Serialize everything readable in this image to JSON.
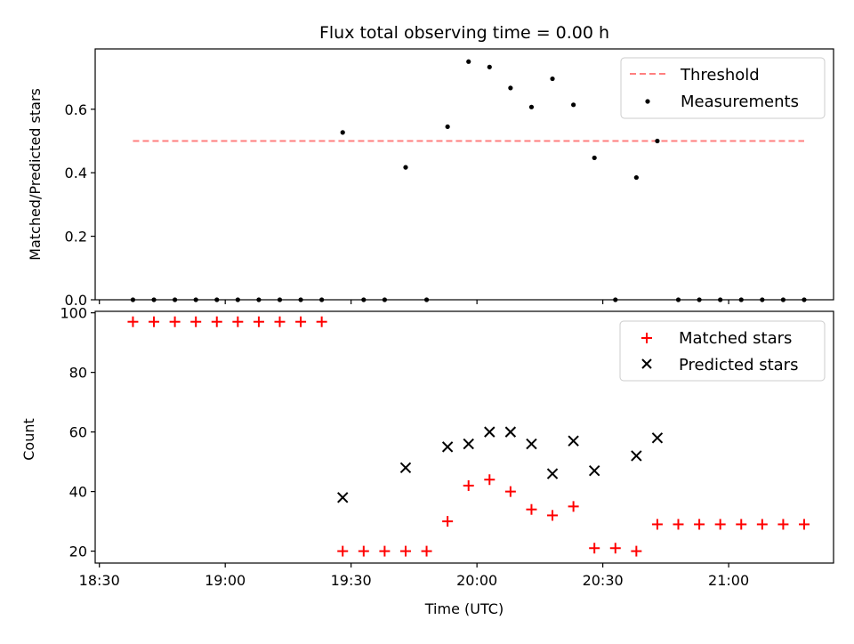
{
  "chart_data": [
    {
      "type": "scatter",
      "title": "Flux total observing time = 0.00 h",
      "xlabel": "",
      "ylabel": "Matched/Predicted stars",
      "ylim": [
        0,
        0.79
      ],
      "yticks": [
        0.0,
        0.2,
        0.4,
        0.6
      ],
      "ytick_labels": [
        "0.0",
        "0.2",
        "0.4",
        "0.6"
      ],
      "legend_position": "top-right",
      "grid": false,
      "threshold": {
        "name": "Threshold",
        "value": 0.5,
        "color": "#ff7f7f",
        "x_start": "18:38",
        "x_end": "21:18"
      },
      "series": [
        {
          "name": "Measurements",
          "color": "#000000",
          "x": [
            "18:38",
            "18:43",
            "18:48",
            "18:53",
            "18:58",
            "19:03",
            "19:08",
            "19:13",
            "19:18",
            "19:23",
            "19:28",
            "19:33",
            "19:38",
            "19:43",
            "19:48",
            "19:53",
            "19:58",
            "20:03",
            "20:08",
            "20:13",
            "20:18",
            "20:23",
            "20:28",
            "20:33",
            "20:38",
            "20:43",
            "20:48",
            "20:53",
            "20:58",
            "21:03",
            "21:08",
            "21:13",
            "21:18"
          ],
          "y": [
            0,
            0,
            0,
            0,
            0,
            0,
            0,
            0,
            0,
            0,
            0.527,
            0,
            0,
            0.417,
            0,
            0.545,
            0.75,
            0.733,
            0.667,
            0.607,
            0.696,
            0.614,
            0.447,
            0,
            0.385,
            0.5,
            0,
            0,
            0,
            0,
            0,
            0,
            0
          ]
        }
      ]
    },
    {
      "type": "scatter",
      "title": "",
      "xlabel": "Time (UTC)",
      "ylabel": "Count",
      "ylim": [
        16,
        100.5
      ],
      "yticks": [
        20,
        40,
        60,
        80,
        100
      ],
      "ytick_labels": [
        "20",
        "40",
        "60",
        "80",
        "100"
      ],
      "xlim": [
        "18:29",
        "21:25"
      ],
      "xticks": [
        "18:30",
        "19:00",
        "19:30",
        "20:00",
        "20:30",
        "21:00"
      ],
      "xtick_labels": [
        "18:30",
        "19:00",
        "19:30",
        "20:00",
        "20:30",
        "21:00"
      ],
      "legend_position": "top-right",
      "grid": false,
      "series": [
        {
          "name": "Matched stars",
          "color": "#ff0000",
          "marker": "plus",
          "x": [
            "18:38",
            "18:43",
            "18:48",
            "18:53",
            "18:58",
            "19:03",
            "19:08",
            "19:13",
            "19:18",
            "19:23",
            "19:28",
            "19:33",
            "19:38",
            "19:43",
            "19:48",
            "19:53",
            "19:58",
            "20:03",
            "20:08",
            "20:13",
            "20:18",
            "20:23",
            "20:28",
            "20:33",
            "20:38",
            "20:43",
            "20:48",
            "20:53",
            "20:58",
            "21:03",
            "21:08",
            "21:13",
            "21:18"
          ],
          "y": [
            97,
            97,
            97,
            97,
            97,
            97,
            97,
            97,
            97,
            97,
            20,
            20,
            20,
            20,
            20,
            30,
            42,
            44,
            40,
            34,
            32,
            35,
            21,
            21,
            20,
            29,
            29,
            29,
            29,
            29,
            29,
            29,
            29
          ]
        },
        {
          "name": "Predicted stars",
          "color": "#000000",
          "marker": "x",
          "x": [
            "19:28",
            "19:43",
            "19:53",
            "19:58",
            "20:03",
            "20:08",
            "20:13",
            "20:18",
            "20:23",
            "20:28",
            "20:38",
            "20:43"
          ],
          "y": [
            38,
            48,
            55,
            56,
            60,
            60,
            56,
            46,
            57,
            47,
            52,
            58
          ]
        }
      ]
    }
  ]
}
